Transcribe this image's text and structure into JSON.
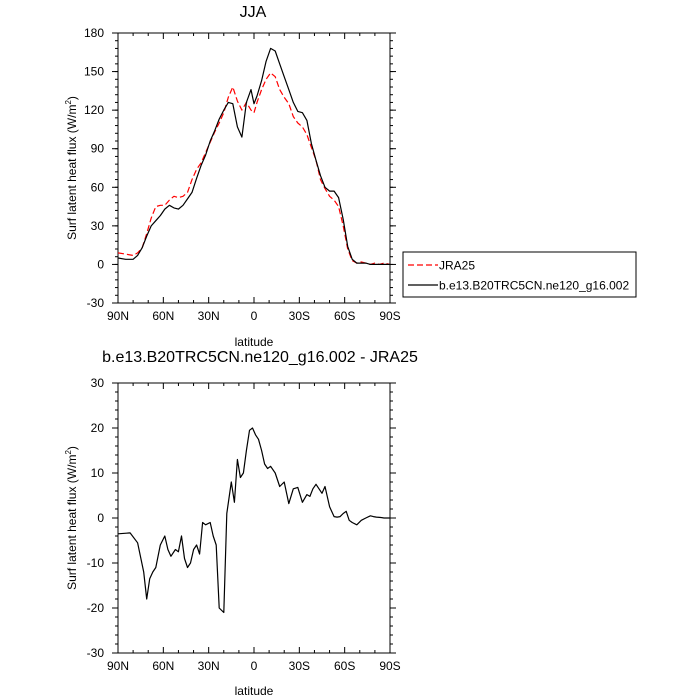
{
  "chart_data": [
    {
      "type": "line",
      "title": "JJA",
      "xlabel": "latitude",
      "ylabel": "Surf latent heat flux (W/m",
      "ylabel_sup": "2",
      "ylabel_end": ")",
      "xlim": [
        90,
        -90
      ],
      "ylim": [
        -30,
        180
      ],
      "xticks": [
        90,
        60,
        30,
        0,
        -30,
        -60,
        -90
      ],
      "xticklabels": [
        "90N",
        "60N",
        "30N",
        "0",
        "30S",
        "60S",
        "90S"
      ],
      "yticks": [
        -30,
        0,
        30,
        60,
        90,
        120,
        150,
        180
      ],
      "yticklabels": [
        "-30",
        "0",
        "30",
        "60",
        "90",
        "120",
        "150",
        "180"
      ],
      "legend": "right",
      "series": [
        {
          "name": "JRA25",
          "color": "#ff0000",
          "dash": "dashed",
          "x": [
            90,
            85,
            80,
            77,
            74,
            71,
            68,
            65,
            62,
            59,
            56,
            53,
            50,
            47,
            44,
            41,
            38,
            35,
            32,
            29,
            26,
            23,
            20,
            17,
            14,
            11,
            8,
            5,
            2,
            0,
            -2,
            -5,
            -8,
            -11,
            -14,
            -17,
            -20,
            -23,
            -26,
            -29,
            -32,
            -35,
            -38,
            -41,
            -44,
            -47,
            -50,
            -53,
            -56,
            -59,
            -62,
            -65,
            -68,
            -71,
            -74,
            -77,
            -80,
            -83,
            -86,
            -90
          ],
          "y": [
            9,
            8,
            7,
            9,
            13,
            24,
            36,
            45,
            46,
            46,
            50,
            53,
            52,
            53,
            56,
            66,
            74,
            79,
            87,
            95,
            103,
            110,
            118,
            130,
            138,
            127,
            120,
            126,
            120,
            118,
            126,
            136,
            144,
            149,
            146,
            136,
            130,
            125,
            115,
            110,
            107,
            101,
            91,
            81,
            66,
            59,
            53,
            50,
            45,
            30,
            12,
            3,
            1,
            2,
            1,
            0,
            1,
            0,
            1,
            0
          ]
        },
        {
          "name": "b.e13.B20TRC5CN.ne120_g16.002",
          "color": "#000000",
          "dash": "solid",
          "x": [
            90,
            85,
            80,
            77,
            74,
            71,
            68,
            65,
            62,
            59,
            56,
            53,
            50,
            47,
            44,
            41,
            38,
            35,
            32,
            29,
            26,
            23,
            20,
            17,
            14,
            11,
            8,
            5,
            2,
            0,
            -2,
            -5,
            -8,
            -11,
            -14,
            -17,
            -20,
            -23,
            -26,
            -29,
            -32,
            -35,
            -38,
            -41,
            -44,
            -47,
            -50,
            -53,
            -56,
            -59,
            -62,
            -65,
            -68,
            -71,
            -74,
            -77,
            -80,
            -83,
            -86,
            -90
          ],
          "y": [
            5,
            4,
            4,
            7,
            13,
            22,
            30,
            34,
            38,
            43,
            46,
            44,
            43,
            46,
            51,
            56,
            67,
            77,
            85,
            96,
            104,
            113,
            120,
            126,
            125,
            107,
            99,
            126,
            136,
            125,
            131,
            143,
            158,
            168,
            166,
            156,
            146,
            136,
            126,
            119,
            118,
            112,
            94,
            81,
            69,
            60,
            57,
            57,
            52,
            35,
            14,
            4,
            1,
            1,
            1,
            0,
            0,
            0,
            0,
            0
          ]
        }
      ]
    },
    {
      "type": "line",
      "title": "b.e13.B20TRC5CN.ne120_g16.002 - JRA25",
      "xlabel": "latitude",
      "ylabel": "Surf latent heat flux (W/m",
      "ylabel_sup": "2",
      "ylabel_end": ")",
      "xlim": [
        90,
        -90
      ],
      "ylim": [
        -30,
        30
      ],
      "xticks": [
        90,
        60,
        30,
        0,
        -30,
        -60,
        -90
      ],
      "xticklabels": [
        "90N",
        "60N",
        "30N",
        "0",
        "30S",
        "60S",
        "90S"
      ],
      "yticks": [
        -30,
        -20,
        -10,
        0,
        10,
        20,
        30
      ],
      "yticklabels": [
        "-30",
        "-20",
        "-10",
        "0",
        "10",
        "20",
        "30"
      ],
      "series": [
        {
          "name": "b.e13.B20TRC5CN.ne120_g16.002 - JRA25",
          "color": "#000000",
          "dash": "solid",
          "x": [
            90,
            82,
            77,
            73,
            71,
            69,
            67,
            65,
            62,
            59,
            57,
            55,
            52,
            50,
            48,
            46,
            44,
            42,
            40,
            38,
            36,
            34,
            32,
            29,
            27,
            25,
            23,
            20,
            18,
            15,
            13,
            11,
            9,
            7,
            5,
            3,
            1,
            -1,
            -3,
            -5,
            -7,
            -9,
            -11,
            -14,
            -17,
            -20,
            -23,
            -26,
            -29,
            -32,
            -35,
            -37,
            -39,
            -41,
            -43,
            -45,
            -47,
            -50,
            -53,
            -55,
            -57,
            -59,
            -61,
            -63,
            -65,
            -68,
            -71,
            -74,
            -77,
            -79,
            -81,
            -84,
            -86,
            -88,
            -90
          ],
          "y": [
            -3.5,
            -3.3,
            -5.5,
            -12,
            -18,
            -13.5,
            -12,
            -11,
            -6,
            -4,
            -7,
            -8.5,
            -7,
            -7.5,
            -4,
            -9,
            -11,
            -10,
            -7,
            -6,
            -8,
            -1,
            -1.5,
            -1,
            -4,
            -6,
            -20,
            -21,
            1,
            8,
            3.5,
            13,
            9,
            10,
            15,
            19.5,
            20,
            18.5,
            17.5,
            15,
            12,
            11,
            11.5,
            10,
            7,
            8,
            3.2,
            6.5,
            6.8,
            3.5,
            5.2,
            4.8,
            6.5,
            7.5,
            6.5,
            5.5,
            7,
            2.5,
            0.3,
            0.2,
            0.3,
            1,
            1.5,
            -0.5,
            -1,
            -1.5,
            -0.5,
            0,
            0.5,
            0.3,
            0.2,
            0.1,
            0.0,
            0.0,
            0.0
          ]
        }
      ]
    }
  ]
}
